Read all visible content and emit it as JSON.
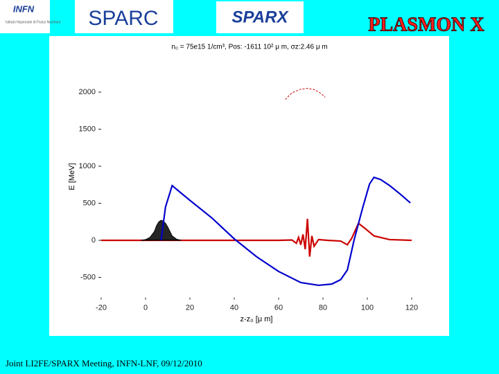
{
  "header": {
    "infn": "INFN",
    "infn_sub": "Istituto Nazionale di Fisica Nucleare",
    "sparc": "SPARC",
    "sparx": "SPARX",
    "plasmon": "PLASMON X"
  },
  "footer": "Joint LI2FE/SPARX Meeting, INFN-LNF, 09/12/2010",
  "chart_data": {
    "type": "line",
    "title": "n₀ = 75e15 1/cm³, Pos: -1611 10² μ m, σz:2.46 μ m",
    "xlabel": "z-z₀ [μ m]",
    "ylabel": "E [MeV]",
    "xlim": [
      -20,
      120
    ],
    "ylim": [
      -800,
      2200
    ],
    "xticks": [
      -20,
      0,
      20,
      40,
      60,
      80,
      100,
      120
    ],
    "yticks": [
      -500,
      0,
      500,
      1000,
      1500,
      2000
    ],
    "series": [
      {
        "color": "#cc0000",
        "x": [
          -20,
          60,
          66,
          68,
          69,
          70,
          71,
          72,
          73,
          74,
          75,
          76,
          78,
          82,
          88,
          91,
          93,
          96,
          99,
          103,
          110,
          120
        ],
        "values": [
          0,
          0,
          5,
          -40,
          40,
          -60,
          80,
          -120,
          290,
          -220,
          60,
          -80,
          10,
          0,
          -10,
          -60,
          30,
          230,
          160,
          60,
          10,
          0
        ]
      },
      {
        "color": "#000000",
        "fill": true,
        "x": [
          -2,
          0,
          2,
          4,
          5,
          6,
          7,
          8,
          9,
          10,
          12,
          14,
          16
        ],
        "values": [
          0,
          10,
          40,
          120,
          200,
          250,
          270,
          260,
          230,
          180,
          60,
          15,
          0
        ]
      },
      {
        "color": "#0000cc",
        "x": [
          7,
          9,
          12,
          20,
          30,
          40,
          50,
          60,
          70,
          78,
          84,
          88,
          91,
          94,
          98,
          101,
          103,
          106,
          110,
          115,
          119.4
        ],
        "values": [
          0,
          450,
          738,
          540,
          300,
          20,
          -220,
          -420,
          -570,
          -607,
          -590,
          -530,
          -400,
          0,
          450,
          760,
          850,
          820,
          740,
          620,
          505
        ]
      },
      {
        "color": "#cc0000",
        "dash": true,
        "x": [
          63,
          66,
          70,
          73,
          76,
          79,
          81
        ],
        "values": [
          1900,
          1990,
          2040,
          2050,
          2035,
          1985,
          1930
        ]
      }
    ]
  }
}
